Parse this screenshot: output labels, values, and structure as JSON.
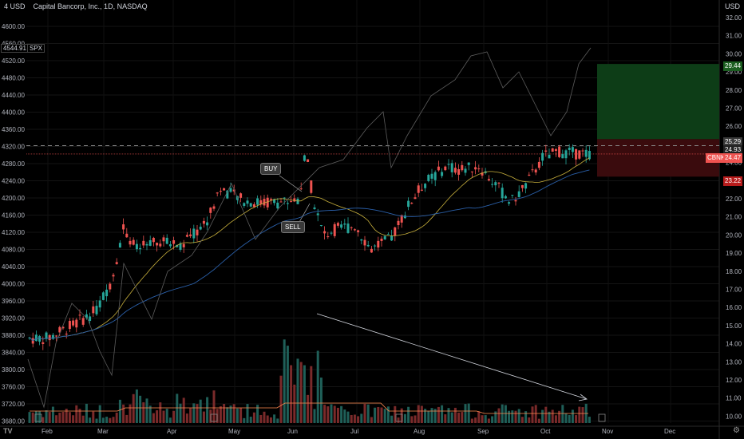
{
  "header": {
    "scale_label": "4 USD",
    "info_icon": "info-icon",
    "title": "Capital Bancorp, Inc., 1D, NASDAQ",
    "currency": "USD"
  },
  "compare_badge": {
    "value": "4544.91",
    "symbol": "SPX"
  },
  "left_axis": [
    "4600.00",
    "4560.00",
    "4520.00",
    "4480.00",
    "4440.00",
    "4400.00",
    "4360.00",
    "4320.00",
    "4280.00",
    "4240.00",
    "4200.00",
    "4160.00",
    "4120.00",
    "4080.00",
    "4040.00",
    "4000.00",
    "3960.00",
    "3920.00",
    "3880.00",
    "3840.00",
    "3800.00",
    "3760.00",
    "3720.00",
    "3680.00"
  ],
  "right_axis": [
    "32.00",
    "31.00",
    "30.00",
    "29.00",
    "28.00",
    "27.00",
    "26.00",
    "25.00",
    "24.00",
    "23.00",
    "22.00",
    "21.00",
    "20.00",
    "19.00",
    "18.00",
    "17.00",
    "16.00",
    "15.00",
    "14.00",
    "13.00",
    "12.00",
    "11.00",
    "10.00"
  ],
  "months": [
    "Feb",
    "Mar",
    "Apr",
    "May",
    "Jun",
    "Jul",
    "Aug",
    "Sep",
    "Oct",
    "Nov",
    "Dec"
  ],
  "price_labels": {
    "target": "29.44",
    "upper": "25.29",
    "dashed": "24.93",
    "ticker": "CBNK",
    "last": "24.47",
    "stop": "23.22"
  },
  "annotations": {
    "buy": "BUY",
    "sell": "SELL"
  },
  "colors": {
    "up": "#26a69a",
    "down": "#ef5350",
    "ma_fast": "#c8b03c",
    "ma_slow": "#2a5fa8",
    "spx_line": "#5d5d5d",
    "vol_ma": "#ff8a50",
    "profit_zone": "#0d3d17",
    "loss_zone": "#3a0b0d"
  },
  "icons": {
    "logo": "tradingview-logo-icon",
    "settings": "gear-icon",
    "dividend": "dividend-marker-icon"
  }
}
